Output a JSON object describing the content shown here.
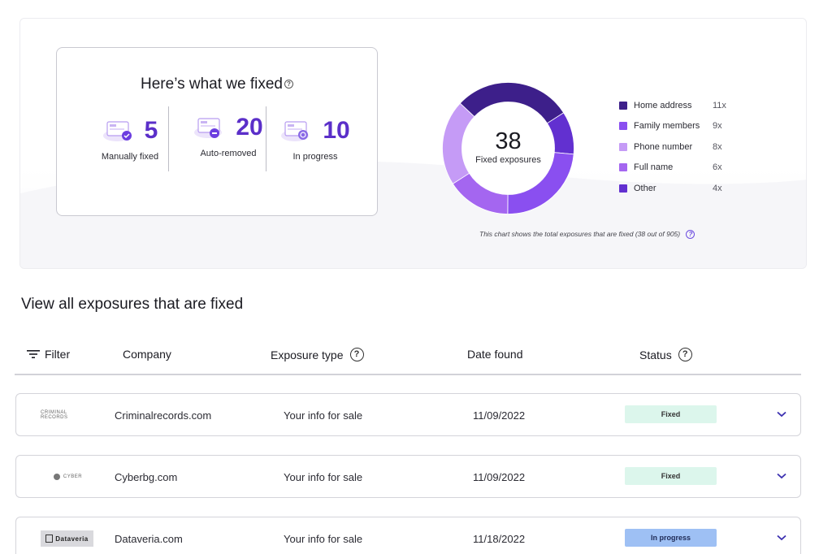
{
  "summary": {
    "title": "Here’s what we fixed",
    "stats": [
      {
        "value": "5",
        "label": "Manually fixed"
      },
      {
        "value": "20",
        "label": "Auto-removed"
      },
      {
        "value": "10",
        "label": "In progress"
      }
    ],
    "donut": {
      "total": "38",
      "center_label": "Fixed exposures",
      "note": "This chart shows the total exposures that are fixed (38 out of 905)"
    },
    "legend": [
      {
        "label": "Home address",
        "count": "11x",
        "color": "#3d1f8a"
      },
      {
        "label": "Family members",
        "count": "9x",
        "color": "#8a4ff0"
      },
      {
        "label": "Phone number",
        "count": "8x",
        "color": "#c59bf6"
      },
      {
        "label": "Full name",
        "count": "6x",
        "color": "#a466f0"
      },
      {
        "label": "Other",
        "count": "4x",
        "color": "#6230d0"
      }
    ]
  },
  "exposures": {
    "title": "View all exposures that are fixed",
    "columns": {
      "filter": "Filter",
      "company": "Company",
      "exposure_type": "Exposure type",
      "date_found": "Date found",
      "status": "Status"
    },
    "rows": [
      {
        "logo_text": "CRIMINAL RECORDS",
        "company": "Criminalrecords.com",
        "type": "Your info for sale",
        "date": "11/09/2022",
        "status": "Fixed"
      },
      {
        "logo_text": "CYBER",
        "company": "Cyberbg.com",
        "type": "Your info for sale",
        "date": "11/09/2022",
        "status": "Fixed"
      },
      {
        "logo_text": "Dataveria",
        "company": "Dataveria.com",
        "type": "Your info for sale",
        "date": "11/18/2022",
        "status": "In progress"
      }
    ]
  }
}
